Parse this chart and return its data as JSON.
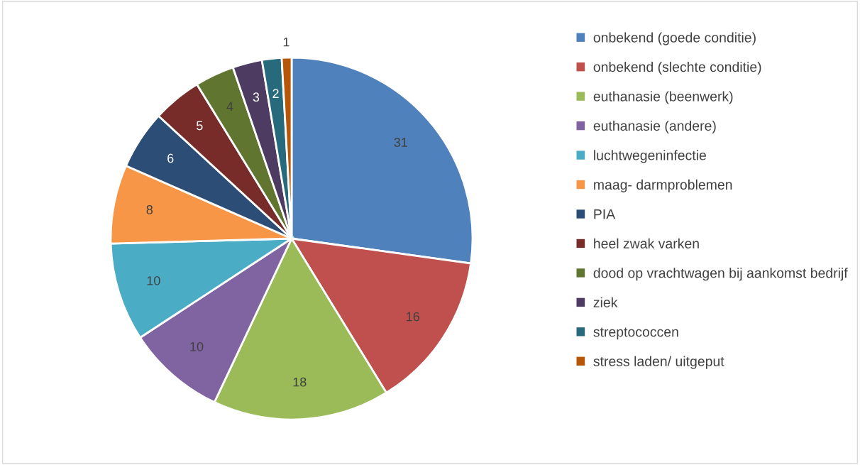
{
  "chart_data": {
    "type": "pie",
    "categories": [
      "onbekend (goede conditie)",
      "onbekend (slechte conditie)",
      "euthanasie (beenwerk)",
      "euthanasie (andere)",
      "luchtwegeninfectie",
      "maag- darmproblemen",
      "PIA",
      "heel zwak varken",
      "dood op vrachtwagen bij aankomst bedrijf",
      "ziek",
      "streptococcen",
      "stress laden/ uitgeput"
    ],
    "values": [
      31,
      16,
      18,
      10,
      10,
      8,
      6,
      5,
      4,
      3,
      2,
      1
    ],
    "colors": [
      "#4f81bd",
      "#c0504d",
      "#9bbb59",
      "#8064a2",
      "#4bacc6",
      "#f79646",
      "#2c4d75",
      "#772c2a",
      "#5f7530",
      "#4d3b62",
      "#276a7c",
      "#b65708"
    ],
    "data_labels": true,
    "legend": "right"
  }
}
